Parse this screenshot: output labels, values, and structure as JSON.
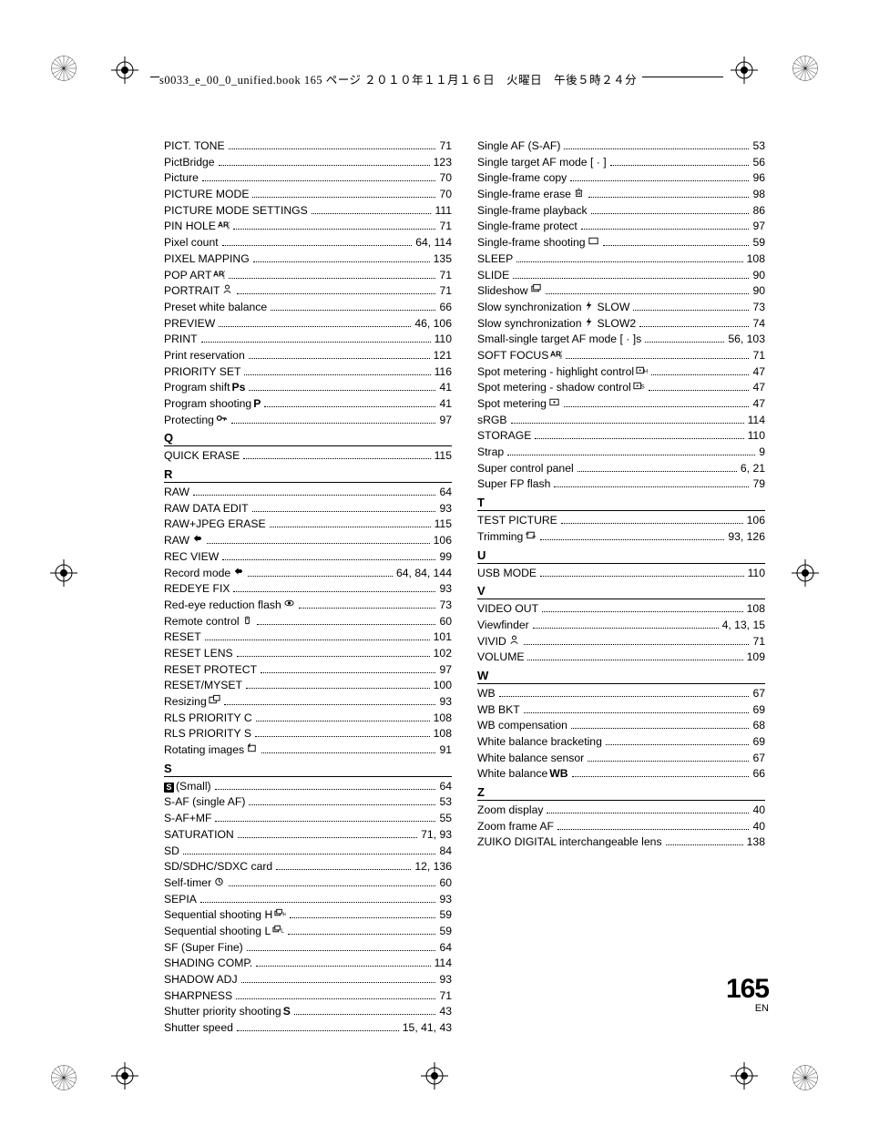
{
  "header": "s0033_e_00_0_unified.book  165 ページ  ２０１０年１１月１６日　火曜日　午後５時２４分",
  "page_number": "165",
  "page_lang": "EN",
  "left": {
    "groups": [
      {
        "entries": [
          {
            "label": "PICT. TONE",
            "page": "71"
          },
          {
            "label": "PictBridge",
            "page": "123"
          },
          {
            "label": "Picture",
            "page": "70"
          },
          {
            "label": "PICTURE MODE",
            "page": "70"
          },
          {
            "label": "PICTURE MODE SETTINGS",
            "page": "111"
          },
          {
            "label": "PIN HOLE",
            "icon": "art5",
            "page": "71"
          },
          {
            "label": "Pixel count",
            "page": "64, 114"
          },
          {
            "label": "PIXEL MAPPING",
            "page": "135"
          },
          {
            "label": "POP ART",
            "icon": "art1",
            "page": "71"
          },
          {
            "label": "PORTRAIT",
            "icon": "portrait",
            "page": "71"
          },
          {
            "label": "Preset white balance",
            "page": "66"
          },
          {
            "label": "PREVIEW",
            "page": "46, 106"
          },
          {
            "label": "PRINT",
            "page": "110"
          },
          {
            "label": "Print reservation",
            "page": "121"
          },
          {
            "label": "PRIORITY SET",
            "page": "116"
          },
          {
            "label": "Program shift",
            "suffix": "Ps",
            "suffix_bold": true,
            "page": "41"
          },
          {
            "label": "Program shooting",
            "suffix": "P",
            "suffix_bold": true,
            "page": "41"
          },
          {
            "label": "Protecting",
            "icon": "key",
            "page": "97"
          }
        ]
      },
      {
        "head": "Q",
        "entries": [
          {
            "label": "QUICK ERASE",
            "page": "115"
          }
        ]
      },
      {
        "head": "R",
        "entries": [
          {
            "label": "RAW",
            "page": "64"
          },
          {
            "label": "RAW DATA EDIT",
            "page": "93"
          },
          {
            "label": "RAW+JPEG ERASE",
            "page": "115"
          },
          {
            "label": "RAW",
            "icon": "record",
            "page": "106"
          },
          {
            "label": "REC VIEW",
            "page": "99"
          },
          {
            "label": "Record mode",
            "icon": "record",
            "page": "64, 84, 144"
          },
          {
            "label": "REDEYE FIX",
            "page": "93"
          },
          {
            "label": "Red-eye reduction flash",
            "icon": "eye",
            "page": "73"
          },
          {
            "label": "Remote control",
            "icon": "remote",
            "page": "60"
          },
          {
            "label": "RESET",
            "page": "101"
          },
          {
            "label": "RESET LENS",
            "page": "102"
          },
          {
            "label": "RESET PROTECT",
            "page": "97"
          },
          {
            "label": "RESET/MYSET",
            "page": "100"
          },
          {
            "label": "Resizing",
            "icon": "resize",
            "page": "93"
          },
          {
            "label": "RLS PRIORITY C",
            "page": "108"
          },
          {
            "label": "RLS PRIORITY S",
            "page": "108"
          },
          {
            "label": "Rotating images",
            "icon": "rotate",
            "page": "91"
          }
        ]
      },
      {
        "head": "S",
        "entries": [
          {
            "label_icon": "sbox",
            "label_suffix": " (Small)",
            "page": "64"
          },
          {
            "label": "S-AF (single AF)",
            "page": "53"
          },
          {
            "label": "S-AF+MF",
            "page": "55"
          },
          {
            "label": "SATURATION",
            "page": "71, 93"
          },
          {
            "label": "SD",
            "page": "84"
          },
          {
            "label": "SD/SDHC/SDXC card",
            "page": "12, 136"
          },
          {
            "label": "Self-timer",
            "icon": "timer",
            "page": "60"
          },
          {
            "label": "SEPIA",
            "page": "93"
          },
          {
            "label": "Sequential shooting H",
            "icon": "seqh",
            "page": "59"
          },
          {
            "label": "Sequential shooting L",
            "icon": "seql",
            "page": "59"
          },
          {
            "label": "SF (Super Fine)",
            "page": "64"
          },
          {
            "label": "SHADING COMP.",
            "page": "114"
          },
          {
            "label": "SHADOW ADJ",
            "page": "93"
          },
          {
            "label": "SHARPNESS",
            "page": "71"
          },
          {
            "label": "Shutter priority shooting",
            "suffix": "S",
            "suffix_bold": true,
            "page": "43"
          },
          {
            "label": "Shutter speed",
            "page": "15, 41, 43"
          }
        ]
      }
    ]
  },
  "right": {
    "groups": [
      {
        "entries": [
          {
            "label": "Single AF (S-AF)",
            "page": "53"
          },
          {
            "label": "Single target AF mode [ · ]",
            "page": "56"
          },
          {
            "label": "Single-frame copy",
            "page": "96"
          },
          {
            "label": "Single-frame erase",
            "icon": "trash",
            "page": "98"
          },
          {
            "label": "Single-frame playback",
            "page": "86"
          },
          {
            "label": "Single-frame protect",
            "page": "97"
          },
          {
            "label": "Single-frame shooting",
            "icon": "frame",
            "page": "59"
          },
          {
            "label": "SLEEP",
            "page": "108"
          },
          {
            "label": "SLIDE",
            "page": "90"
          },
          {
            "label": "Slideshow",
            "icon": "slideshow",
            "page": "90"
          },
          {
            "label": "Slow synchronization",
            "icon": "flash",
            "suffix": "SLOW",
            "page": "73"
          },
          {
            "label": "Slow synchronization",
            "icon": "flash",
            "suffix": "SLOW2",
            "page": "74"
          },
          {
            "label": "Small-single target AF mode [ · ]s",
            "page": "56, 103"
          },
          {
            "label": "SOFT FOCUS",
            "icon": "art2",
            "page": "71"
          },
          {
            "label": "Spot metering - highlight control",
            "icon": "spothi",
            "page": "47"
          },
          {
            "label": "Spot metering - shadow control",
            "icon": "spotsh",
            "page": "47"
          },
          {
            "label": "Spot metering",
            "icon": "spot",
            "page": "47"
          },
          {
            "label": "sRGB",
            "page": "114"
          },
          {
            "label": "STORAGE",
            "page": "110"
          },
          {
            "label": "Strap",
            "page": "9"
          },
          {
            "label": "Super control panel",
            "page": "6, 21"
          },
          {
            "label": "Super FP flash",
            "page": "79"
          }
        ]
      },
      {
        "head": "T",
        "entries": [
          {
            "label": "TEST PICTURE",
            "page": "106"
          },
          {
            "label": "Trimming",
            "icon": "crop",
            "page": "93, 126"
          }
        ]
      },
      {
        "head": "U",
        "entries": [
          {
            "label": "USB MODE",
            "page": "110"
          }
        ]
      },
      {
        "head": "V",
        "entries": [
          {
            "label": "VIDEO OUT",
            "page": "108"
          },
          {
            "label": "Viewfinder",
            "page": "4, 13, 15"
          },
          {
            "label": "VIVID",
            "icon": "vivid",
            "page": "71"
          },
          {
            "label": "VOLUME",
            "page": "109"
          }
        ]
      },
      {
        "head": "W",
        "entries": [
          {
            "label": "WB",
            "page": "67"
          },
          {
            "label": "WB BKT",
            "page": "69"
          },
          {
            "label": "WB compensation",
            "page": "68"
          },
          {
            "label": "White balance bracketing",
            "page": "69"
          },
          {
            "label": "White balance sensor",
            "page": "67"
          },
          {
            "label": "White balance",
            "suffix": "WB",
            "suffix_bold": true,
            "page": "66"
          }
        ]
      },
      {
        "head": "Z",
        "entries": [
          {
            "label": "Zoom display",
            "page": "40"
          },
          {
            "label": "Zoom frame AF",
            "page": "40"
          },
          {
            "label": "ZUIKO DIGITAL interchangeable lens",
            "page": "138"
          }
        ]
      }
    ]
  }
}
